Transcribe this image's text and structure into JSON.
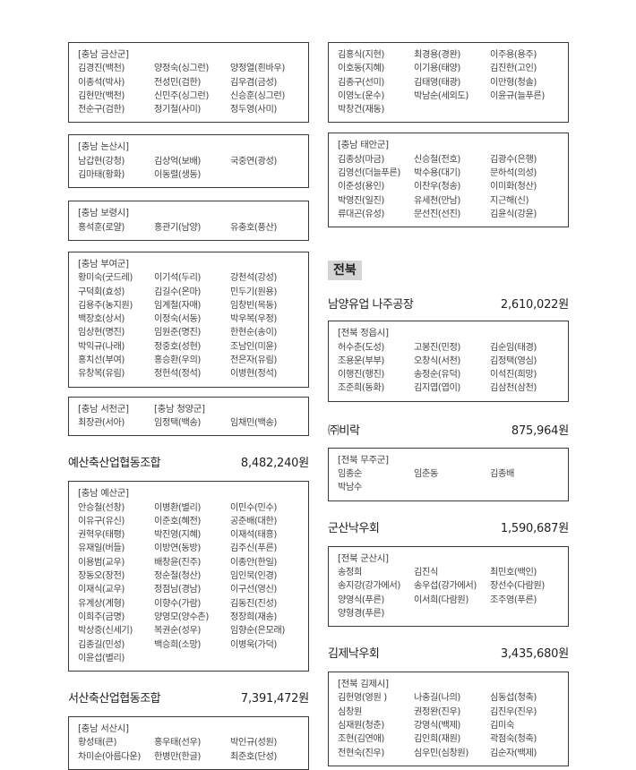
{
  "left_column": [
    {
      "type": "box",
      "headers": [
        "[충남 금산군]"
      ],
      "names": [
        "김경진(백천)",
        "양정숙(싱그런)",
        "양정열(흰바우)",
        "이종석(박사)",
        "전성민(검한)",
        "김우겸(금성)",
        "김현만(백천)",
        "신민주(싱그런)",
        "신승훈(싱그런)",
        "전순구(검한)",
        "정기철(사미)",
        "정두영(사미)"
      ]
    },
    {
      "type": "box",
      "headers": [
        "[충남 논산시]"
      ],
      "names": [
        "남갑현(강청)",
        "김상억(보배)",
        "국중연(광성)",
        "김마태(황화)",
        "이동렬(생동)"
      ]
    },
    {
      "type": "box",
      "headers": [
        "[충남 보령시]"
      ],
      "names": [
        "홍석훈(로얄)",
        "홍관기(남양)",
        "유충호(풍산)"
      ]
    },
    {
      "type": "box",
      "headers": [
        "[충남 부여군]"
      ],
      "names": [
        "황미숙(굿드레)",
        "이기석(두리)",
        "강천석(강성)",
        "구덕회(효성)",
        "김길수(온마)",
        "민두기(원용)",
        "김용주(농지원)",
        "임계철(자매)",
        "임창빈(목동)",
        "백장호(상서)",
        "이정숙(서동)",
        "박우복(우정)",
        "임상현(명진)",
        "임원준(명진)",
        "한현순(송이)",
        "박익규(나래)",
        "정중호(성현)",
        "조남인(미윤)",
        "홍치선(부여)",
        "홍승환(우의)",
        "전은자(유림)",
        "유창복(유림)",
        "정헌석(정석)",
        "이병현(정석)"
      ]
    },
    {
      "type": "box",
      "headers": [
        "[충남 서천군]",
        "[충남 청양군]"
      ],
      "names": [
        "최장관(서아)",
        "임정택(백송)",
        "임채민(백송)"
      ]
    },
    {
      "type": "heading",
      "org": "예산축산업협동조합",
      "amount": "8,482,240원"
    },
    {
      "type": "box",
      "headers": [
        "[충남 예산군]"
      ],
      "names": [
        "안승철(선창)",
        "이병환(별리)",
        "이민수(민수)",
        "이유구(유신)",
        "이준호(혜전)",
        "공준배(대한)",
        "권혁우(태평)",
        "박진영(지혜)",
        "이재석(태흥)",
        "유재일(버들)",
        "이방연(동방)",
        "김주신(푸른)",
        "이용범(교우)",
        "배창윤(진주)",
        "이종안(한일)",
        "장동오(장전)",
        "정순철(청산)",
        "임인묵(인경)",
        "이재식(교우)",
        "정점남(경남)",
        "이구선(영신)",
        "유계상(계형)",
        "이향수(가람)",
        "김동진(진성)",
        "이희주(금명)",
        "양영모(양수촌)",
        "정장희(재송)",
        "박상증(신세기)",
        "복권순(성우)",
        "임향순(은모래)",
        "김종길(민성)",
        "백승희(소망)",
        "이병욱(가덕)",
        "이윤섭(별리)"
      ]
    },
    {
      "type": "heading",
      "org": "서산축산업협동조합",
      "amount": "7,391,472원"
    },
    {
      "type": "box",
      "headers": [
        "[충남 서산시]"
      ],
      "names": [
        "황성태(큰)",
        "홍우태(선우)",
        "박인규(성원)",
        "차미순(아름다운)",
        "한병만(한글)",
        "최준호(단성)"
      ]
    }
  ],
  "right_column": [
    {
      "type": "box",
      "headers": [],
      "names": [
        "김홍식(지현)",
        "최경용(경완)",
        "이주용(용주)",
        "이호동(지혜)",
        "이기용(태양)",
        "김진한(고인)",
        "김종구(선미)",
        "김태영(태광)",
        "이만형(청솔)",
        "이영노(운수)",
        "박남순(세외도)",
        "이윤규(늘푸른)",
        "박창건(재동)"
      ]
    },
    {
      "type": "box",
      "headers": [
        "[충남 태안군]"
      ],
      "names": [
        "김종상(마금)",
        "신승철(전호)",
        "김광수(은행)",
        "김영선(더늘푸른)",
        "박수용(대기)",
        "문하석(의성)",
        "이준성(용인)",
        "이찬우(청송)",
        "이미화(청산)",
        "박영진(일진)",
        "유세천(만남)",
        "지근해(신)",
        "류대곤(유성)",
        "문선진(선진)",
        "김윤식(강윤)"
      ]
    },
    {
      "type": "region",
      "label": "전북"
    },
    {
      "type": "heading",
      "org": "남양유업 나주공장",
      "amount": "2,610,022원"
    },
    {
      "type": "box",
      "headers": [
        "[전북 정읍시]"
      ],
      "names": [
        "허수춘(도성)",
        "고봉진(민정)",
        "김순임(태경)",
        "조용운(부부)",
        "오창식(서천)",
        "김정택(영심)",
        "이행진(행진)",
        "송정순(유덕)",
        "이석진(희망)",
        "조준희(동화)",
        "김지엽(엽이)",
        "김삼천(삼천)"
      ]
    },
    {
      "type": "heading",
      "org": "㈜비락",
      "amount": "875,964원"
    },
    {
      "type": "box",
      "headers": [
        "[전북 무주군]"
      ],
      "names": [
        "임종순",
        "임춘동",
        "김종배",
        "박남수"
      ]
    },
    {
      "type": "heading",
      "org": "군산낙우회",
      "amount": "1,590,687원"
    },
    {
      "type": "box",
      "headers": [
        "[전북 군산시]"
      ],
      "names": [
        "송정희",
        "김진식",
        "최민호(백인)",
        "송지강(강가에서)",
        "송우섭(강가에서)",
        "장선수(다람원)",
        "양영식(푸른)",
        "이서희(다람원)",
        "조주영(푸른)",
        "양형경(푸른)"
      ]
    },
    {
      "type": "heading",
      "org": "김제낙우회",
      "amount": "3,435,680원"
    },
    {
      "type": "box",
      "headers": [
        "[전북 김제시]"
      ],
      "names": [
        "김헌영(영원 )",
        "나충길(나의)",
        "심동섭(청축)",
        "심창원",
        "권정완(진우)",
        "김진우(진우)",
        "심재원(청춘)",
        "강영식(백제)",
        "김미숙",
        "조현(김연애)",
        "김인희(재원)",
        "곽점숙(청축)",
        "전현숙(진우)",
        "심우민(심창원)",
        "김순자(백제)"
      ]
    }
  ]
}
